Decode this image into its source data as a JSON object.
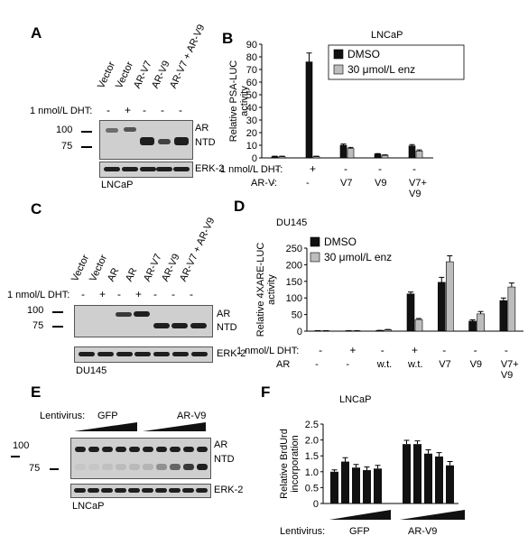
{
  "panels": {
    "A": {
      "label": "A",
      "lanes": [
        "Vector",
        "Vector",
        "AR-V7",
        "AR-V9",
        "AR-V7 + AR-V9"
      ],
      "treatment_label": "1 nmol/L DHT:",
      "treatment": [
        "-",
        "+",
        "-",
        "-",
        "-"
      ],
      "mw": [
        "100",
        "75"
      ],
      "right_labels": [
        "AR",
        "NTD"
      ],
      "loading_label": "ERK-2",
      "cell_line": "LNCaP"
    },
    "B": {
      "label": "B",
      "cell_line": "LNCaP",
      "row1_label": "1 nmol/L DHT:",
      "row1": [
        "-",
        "+",
        "-",
        "-",
        "-"
      ],
      "row2_label": "AR-V:",
      "row2": [
        "-",
        "-",
        "V7",
        "V9",
        "V7+\nV9"
      ]
    },
    "C": {
      "label": "C",
      "lanes": [
        "Vector",
        "Vector",
        "AR",
        "AR",
        "AR-V7",
        "AR-V9",
        "AR-V7 + AR-V9"
      ],
      "treatment_label": "1 nmol/L DHT:",
      "treatment": [
        "-",
        "+",
        "-",
        "+",
        "-",
        "-",
        "-"
      ],
      "mw": [
        "100",
        "75"
      ],
      "right_labels": [
        "AR",
        "NTD"
      ],
      "loading_label": "ERK-2",
      "cell_line": "DU145"
    },
    "D": {
      "label": "D",
      "cell_line": "DU145",
      "row1_label": "1 nmol/L DHT:",
      "row1": [
        "-",
        "+",
        "-",
        "+",
        "-",
        "-",
        "-"
      ],
      "row2_label": "AR",
      "row2": [
        "-",
        "-",
        "w.t.",
        "w.t.",
        "V7",
        "V9",
        "V7+\nV9"
      ]
    },
    "E": {
      "label": "E",
      "lentivirus_label": "Lentivirus:",
      "groups": [
        "GFP",
        "AR-V9"
      ],
      "mw": [
        "100",
        "75"
      ],
      "right_labels": [
        "AR",
        "NTD"
      ],
      "loading_label": "ERK-2",
      "cell_line": "LNCaP"
    },
    "F": {
      "label": "F",
      "cell_line": "LNCaP",
      "lentivirus_label": "Lentivirus:",
      "groups": [
        "GFP",
        "AR-V9"
      ]
    }
  },
  "chart_data": [
    {
      "id": "B",
      "type": "bar",
      "ylabel": "Relative PSA-LUC\nactivity",
      "ylim": [
        0,
        90
      ],
      "yticks": [
        0,
        10,
        20,
        30,
        40,
        50,
        60,
        70,
        80,
        90
      ],
      "categories": [
        "1",
        "2",
        "3",
        "4",
        "5"
      ],
      "legend": "top-right",
      "series": [
        {
          "name": "DMSO",
          "color": "#111111",
          "values": [
            1,
            76,
            10,
            3,
            9.5
          ],
          "err": [
            0.3,
            7,
            1,
            0.4,
            1
          ]
        },
        {
          "name": "30 μmol/L enz",
          "color": "#bdbdbd",
          "values": [
            1,
            1,
            7.5,
            2,
            5.5
          ],
          "err": [
            0.3,
            0.3,
            0.8,
            0.4,
            0.8
          ]
        }
      ]
    },
    {
      "id": "D",
      "type": "bar",
      "ylabel": "Relative 4XARE-LUC\nactivity",
      "ylim": [
        0,
        250
      ],
      "yticks": [
        0,
        50,
        100,
        150,
        200,
        250
      ],
      "categories": [
        "1",
        "2",
        "3",
        "4",
        "5",
        "6",
        "7"
      ],
      "legend": "top-left",
      "series": [
        {
          "name": "DMSO",
          "color": "#111111",
          "values": [
            1,
            1,
            2,
            112,
            147,
            30,
            92
          ],
          "err": [
            0.3,
            0.3,
            0.5,
            6,
            15,
            4,
            8
          ]
        },
        {
          "name": "30 μmol/L enz",
          "color": "#bdbdbd",
          "values": [
            1,
            1,
            4,
            35,
            209,
            52,
            133
          ],
          "err": [
            0.3,
            0.3,
            1,
            3,
            18,
            7,
            12
          ]
        }
      ]
    },
    {
      "id": "F",
      "type": "bar",
      "ylabel": "Relative BrdUrd\nincorporation",
      "ylim": [
        0,
        2.5
      ],
      "yticks": [
        "0",
        "0.5",
        "1.0",
        "1.5",
        "2.0",
        "2.5"
      ],
      "groups": [
        "GFP",
        "AR-V9"
      ],
      "series": [
        {
          "color": "#111111",
          "values": [
            1.0,
            1.32,
            1.13,
            1.05,
            1.1,
            1.87,
            1.87,
            1.57,
            1.48,
            1.2
          ],
          "err": [
            0.06,
            0.12,
            0.1,
            0.1,
            0.1,
            0.12,
            0.1,
            0.12,
            0.12,
            0.12
          ]
        }
      ]
    }
  ]
}
